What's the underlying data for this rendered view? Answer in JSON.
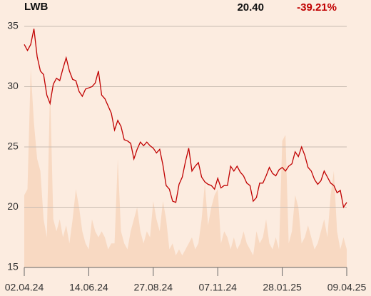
{
  "header": {
    "title": "LWB",
    "last_value": "20.40",
    "change": "-39.21%"
  },
  "chart_data": {
    "type": "line",
    "categories": [
      "02.04.24",
      null,
      null,
      null,
      null,
      null,
      null,
      null,
      null,
      null,
      null,
      null,
      null,
      null,
      null,
      null,
      null,
      null,
      null,
      null,
      "14.06.24",
      null,
      null,
      null,
      null,
      null,
      null,
      null,
      null,
      null,
      null,
      null,
      null,
      null,
      null,
      null,
      null,
      null,
      null,
      null,
      "27.08.24",
      null,
      null,
      null,
      null,
      null,
      null,
      null,
      null,
      null,
      null,
      null,
      null,
      null,
      null,
      null,
      null,
      null,
      null,
      null,
      "07.11.24",
      null,
      null,
      null,
      null,
      null,
      null,
      null,
      null,
      null,
      null,
      null,
      null,
      null,
      null,
      null,
      null,
      null,
      null,
      null,
      "28.01.25",
      null,
      null,
      null,
      null,
      null,
      null,
      null,
      null,
      null,
      null,
      null,
      null,
      null,
      null,
      null,
      null,
      null,
      null,
      null,
      "09.04.25"
    ],
    "series": [
      {
        "type": "area",
        "color": "#f8d9c2",
        "values": [
          21,
          21.5,
          31.5,
          27,
          24,
          23,
          19,
          17.5,
          30,
          19,
          18,
          19,
          17.5,
          18.5,
          17,
          19,
          21.5,
          20,
          18,
          17,
          16.5,
          19,
          18,
          17.5,
          18,
          17.5,
          16.5,
          17,
          17,
          24,
          18,
          17,
          16.5,
          18,
          19,
          20,
          18,
          17,
          18,
          17.5,
          20.5,
          19,
          18,
          20.5,
          19,
          16.5,
          17,
          16,
          16.5,
          16,
          16.5,
          17,
          17.5,
          16.5,
          17,
          19,
          22,
          18.5,
          20,
          21,
          21.5,
          17,
          18,
          17.5,
          16.5,
          17.5,
          16.5,
          17,
          18,
          17,
          16.5,
          16,
          18,
          17,
          17.5,
          19,
          17,
          16.5,
          17.5,
          16.5,
          25.5,
          26,
          17,
          18,
          21,
          20,
          17,
          17.5,
          18.5,
          17.5,
          16.5,
          17,
          18,
          19,
          17.5,
          21,
          23,
          18,
          16.5,
          17.5,
          16.5
        ]
      },
      {
        "type": "line",
        "color": "#c00000",
        "values": [
          33.5,
          33.0,
          33.5,
          34.8,
          32.5,
          31.3,
          31.0,
          29.3,
          28.6,
          30.2,
          30.7,
          30.5,
          31.5,
          32.4,
          31.3,
          30.6,
          30.5,
          29.6,
          29.2,
          29.8,
          29.9,
          30.0,
          30.3,
          31.3,
          29.3,
          29.0,
          28.4,
          27.8,
          26.4,
          27.2,
          26.7,
          25.6,
          25.5,
          25.3,
          24.0,
          24.8,
          25.4,
          25.1,
          25.4,
          25.1,
          24.9,
          24.5,
          24.8,
          23.5,
          21.8,
          21.5,
          20.5,
          20.4,
          21.9,
          22.5,
          23.8,
          24.9,
          23.0,
          23.4,
          23.7,
          22.5,
          22.1,
          21.9,
          21.8,
          21.5,
          22.4,
          21.6,
          21.8,
          21.8,
          23.4,
          23.0,
          23.4,
          22.9,
          22.6,
          22.0,
          21.8,
          20.5,
          20.8,
          22.0,
          22.0,
          22.6,
          23.3,
          22.8,
          22.6,
          23.1,
          23.3,
          23.0,
          23.4,
          23.6,
          24.6,
          24.2,
          25.0,
          24.3,
          23.3,
          23.0,
          22.3,
          21.9,
          22.2,
          23.0,
          22.5,
          22.0,
          21.8,
          21.2,
          21.4,
          20.0,
          20.4
        ]
      }
    ],
    "ylim": [
      15,
      35
    ],
    "yticks": [
      15,
      20,
      25,
      30,
      35
    ],
    "grid": true
  }
}
